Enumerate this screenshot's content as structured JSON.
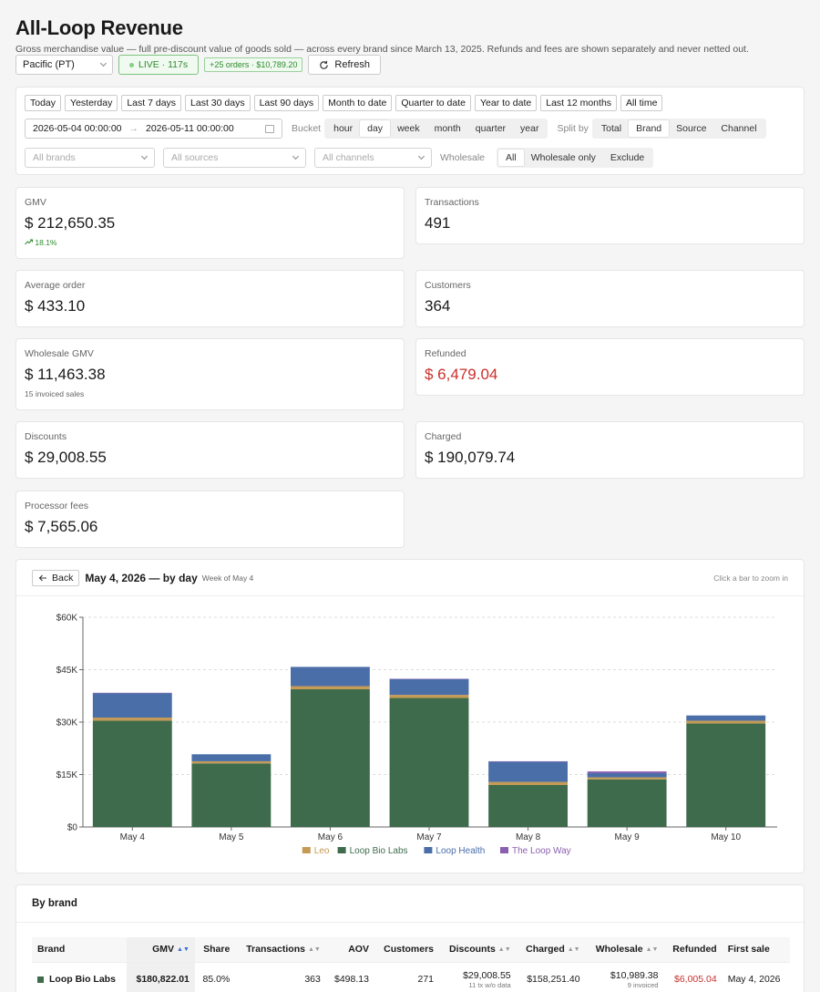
{
  "header": {
    "title": "All-Loop Revenue",
    "subtitle": "Gross merchandise value — full pre-discount value of goods sold — across every brand since March 13, 2025. Refunds and fees are shown separately and never netted out."
  },
  "toolbar": {
    "timezone": "Pacific (PT)",
    "live_label": "LIVE · 117s",
    "new_orders": "+25 orders · $10,789.20",
    "refresh_label": "Refresh"
  },
  "filters": {
    "presets": [
      "Today",
      "Yesterday",
      "Last 7 days",
      "Last 30 days",
      "Last 90 days",
      "Month to date",
      "Quarter to date",
      "Year to date",
      "Last 12 months",
      "All time"
    ],
    "date_from": "2026-05-04 00:00:00",
    "date_arrow": "→",
    "date_to": "2026-05-11 00:00:00",
    "bucket_label": "Bucket",
    "bucket_options": [
      "hour",
      "day",
      "week",
      "month",
      "quarter",
      "year"
    ],
    "bucket_selected": "day",
    "split_label": "Split by",
    "split_options": [
      "Total",
      "Brand",
      "Source",
      "Channel"
    ],
    "split_selected": "Brand",
    "brands_placeholder": "All brands",
    "sources_placeholder": "All sources",
    "channels_placeholder": "All channels",
    "wholesale_label": "Wholesale",
    "wholesale_options": [
      "All",
      "Wholesale only",
      "Exclude"
    ],
    "wholesale_selected": "All"
  },
  "metrics": {
    "gmv": {
      "label": "GMV",
      "value": "$ 212,650.35",
      "trend": "18.1%"
    },
    "transactions": {
      "label": "Transactions",
      "value": "491"
    },
    "avg_order": {
      "label": "Average order",
      "value": "$ 433.10"
    },
    "customers": {
      "label": "Customers",
      "value": "364"
    },
    "wholesale_gmv": {
      "label": "Wholesale GMV",
      "value": "$ 11,463.38",
      "sub": "15 invoiced sales"
    },
    "refunded": {
      "label": "Refunded",
      "value": "$ 6,479.04"
    },
    "discounts": {
      "label": "Discounts",
      "value": "$ 29,008.55"
    },
    "charged": {
      "label": "Charged",
      "value": "$ 190,079.74"
    },
    "processor_fees": {
      "label": "Processor fees",
      "value": "$ 7,565.06"
    }
  },
  "chart_panel": {
    "back_label": "Back",
    "title": "May 4, 2026 — by day",
    "subtitle": "Week of May 4",
    "hint": "Click a bar to zoom in"
  },
  "chart_data": {
    "type": "bar",
    "stacked": true,
    "categories": [
      "May 4",
      "May 5",
      "May 6",
      "May 7",
      "May 8",
      "May 9",
      "May 10"
    ],
    "series": [
      {
        "name": "Loop Bio Labs",
        "color": "#3e6b4c",
        "values": [
          30400,
          18200,
          39400,
          36900,
          12000,
          13600,
          29600
        ]
      },
      {
        "name": "Leo",
        "color": "#c49a55",
        "values": [
          900,
          600,
          900,
          900,
          900,
          600,
          800
        ]
      },
      {
        "name": "Loop Health",
        "color": "#4a6ea8",
        "values": [
          7000,
          2000,
          5500,
          4500,
          5800,
          1200,
          1500
        ]
      },
      {
        "name": "The Loop Way",
        "color": "#8b5fb0",
        "values": [
          100,
          0,
          0,
          100,
          100,
          500,
          0
        ]
      }
    ],
    "legend_order": [
      "Leo",
      "Loop Bio Labs",
      "Loop Health",
      "The Loop Way"
    ],
    "legend_colors": [
      "#c49a55",
      "#3e6b4c",
      "#4a6ea8",
      "#8b5fb0"
    ],
    "ylim": [
      0,
      60000
    ],
    "y_ticks": [
      0,
      15000,
      30000,
      45000,
      60000
    ],
    "y_tick_labels": [
      "$0",
      "$15K",
      "$30K",
      "$45K",
      "$60K"
    ],
    "legend_position": "bottom",
    "grid": true
  },
  "brand_table": {
    "title": "By brand",
    "columns": [
      "Brand",
      "GMV",
      "Share",
      "Transactions",
      "AOV",
      "Customers",
      "Discounts",
      "Charged",
      "Wholesale",
      "Refunded",
      "First sale"
    ],
    "rows": [
      {
        "brand": "Loop Bio Labs",
        "color": "#3e6b4c",
        "gmv": "$180,822.01",
        "share": "85.0%",
        "transactions": "363",
        "aov": "$498.13",
        "customers": "271",
        "discounts": "$29,008.55",
        "discounts_sub": "11 tx w/o data",
        "charged": "$158,251.40",
        "wholesale": "$10,989.38",
        "wholesale_sub": "9 invoiced",
        "refunded": "$6,005.04",
        "first_sale": "May 4, 2026"
      }
    ]
  }
}
